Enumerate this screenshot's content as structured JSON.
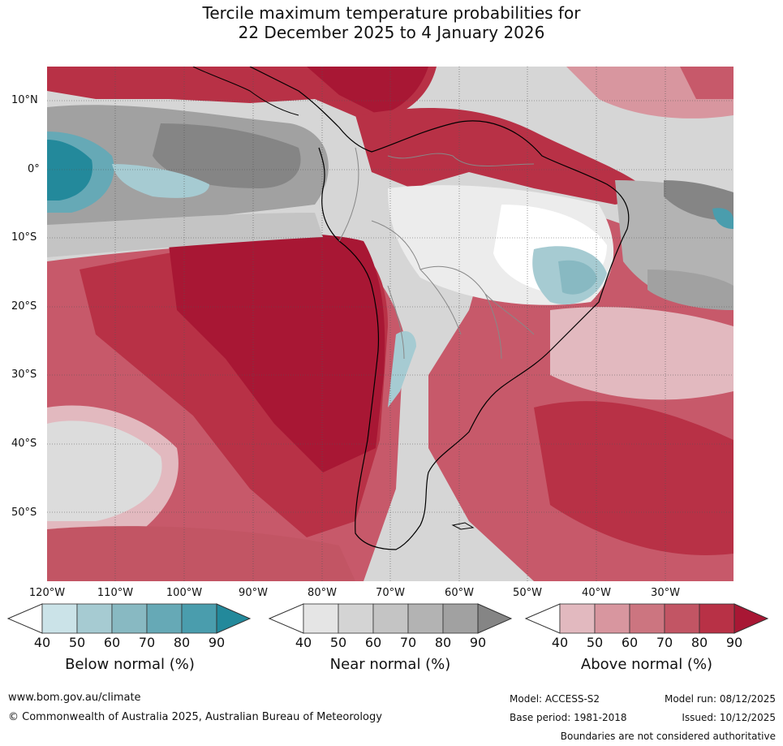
{
  "title": {
    "line1": "Tercile maximum temperature probabilities for",
    "line2": "22 December 2025 to 4 January 2026"
  },
  "map": {
    "lat_labels": [
      "10°N",
      "0°",
      "10°S",
      "20°S",
      "30°S",
      "40°S",
      "50°S"
    ],
    "lon_labels": [
      "120°W",
      "110°W",
      "100°W",
      "90°W",
      "80°W",
      "70°W",
      "60°W",
      "50°W",
      "40°W",
      "30°W"
    ]
  },
  "colorbars": [
    {
      "label": "Below normal (%)",
      "ticks": [
        "40",
        "50",
        "60",
        "70",
        "80",
        "90"
      ],
      "colors": [
        "#ffffff",
        "#cbe3e8",
        "#a6cbd2",
        "#88b9c2",
        "#66a9b6",
        "#4a9dad",
        "#23899b"
      ]
    },
    {
      "label": "Near normal (%)",
      "ticks": [
        "40",
        "50",
        "60",
        "70",
        "80",
        "90"
      ],
      "colors": [
        "#ffffff",
        "#e5e5e5",
        "#d4d4d4",
        "#c4c4c4",
        "#b3b3b3",
        "#a1a1a1",
        "#858585"
      ]
    },
    {
      "label": "Above normal (%)",
      "ticks": [
        "40",
        "50",
        "60",
        "70",
        "80",
        "90"
      ],
      "colors": [
        "#ffffff",
        "#e2b9bf",
        "#d8969f",
        "#cc7580",
        "#c25564",
        "#b83146",
        "#a81734"
      ]
    }
  ],
  "footer": {
    "website": "www.bom.gov.au/climate",
    "copyright": "© Commonwealth of Australia 2025, Australian Bureau of Meteorology",
    "model": "Model: ACCESS-S2",
    "base_period": "Base period: 1981-2018",
    "model_run": "Model run: 08/12/2025",
    "issued": "Issued: 10/12/2025",
    "disclaimer": "Boundaries are not considered authoritative"
  }
}
